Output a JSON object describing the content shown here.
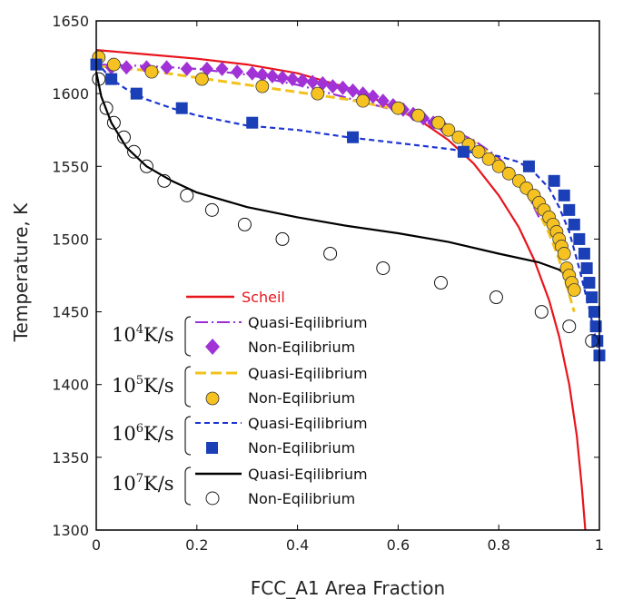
{
  "chart_data": {
    "type": "line",
    "xlabel": "FCC_A1 Area Fraction",
    "ylabel": "Temperature, K",
    "xlim": [
      0,
      1
    ],
    "ylim": [
      1300,
      1650
    ],
    "x_ticks": [
      0,
      0.2,
      0.4,
      0.6,
      0.8,
      1
    ],
    "x_tick_labels": [
      "0",
      "0.2",
      "0.4",
      "0.6",
      "0.8",
      "1"
    ],
    "y_ticks": [
      1300,
      1350,
      1400,
      1450,
      1500,
      1550,
      1600,
      1650
    ],
    "y_tick_labels": [
      "1300",
      "1350",
      "1400",
      "1450",
      "1500",
      "1550",
      "1600",
      "1650"
    ],
    "series": [
      {
        "name": "Scheil",
        "kind": "line",
        "color": "#e8141b",
        "dash": "solid",
        "x": [
          0,
          0.1,
          0.2,
          0.3,
          0.4,
          0.5,
          0.55,
          0.6,
          0.65,
          0.7,
          0.75,
          0.8,
          0.84,
          0.87,
          0.9,
          0.92,
          0.94,
          0.955,
          0.965,
          0.972
        ],
        "y": [
          1630,
          1627,
          1624,
          1620,
          1614,
          1604,
          1597,
          1589,
          1580,
          1568,
          1552,
          1530,
          1508,
          1486,
          1458,
          1433,
          1400,
          1365,
          1330,
          1300
        ]
      },
      {
        "name": "Quasi-Eqilibrium 10^4 K/s",
        "kind": "line",
        "color": "#9b2fd6",
        "dash": "dashdot",
        "x": [
          0,
          0.1,
          0.2,
          0.3,
          0.4,
          0.5,
          0.6,
          0.65,
          0.7,
          0.75,
          0.8,
          0.85,
          0.88
        ],
        "y": [
          1620,
          1619,
          1617,
          1613,
          1606,
          1597,
          1588,
          1583,
          1576,
          1568,
          1556,
          1536,
          1515
        ]
      },
      {
        "name": "Non-Eqilibrium 10^4 K/s",
        "kind": "marker",
        "marker": "diamond",
        "color": "#a132d6",
        "x": [
          0.03,
          0.06,
          0.1,
          0.14,
          0.18,
          0.22,
          0.25,
          0.28,
          0.31,
          0.33,
          0.35,
          0.37,
          0.39,
          0.41,
          0.43,
          0.45,
          0.47,
          0.49,
          0.51,
          0.53,
          0.55,
          0.57,
          0.59,
          0.61,
          0.63,
          0.65,
          0.67,
          0.69
        ],
        "y": [
          1618,
          1618,
          1618,
          1618,
          1617,
          1617,
          1617,
          1615,
          1614,
          1613,
          1612,
          1611,
          1610,
          1609,
          1608,
          1607,
          1605,
          1604,
          1602,
          1600,
          1598,
          1595,
          1592,
          1589,
          1586,
          1583,
          1580,
          1577
        ]
      },
      {
        "name": "Quasi-Eqilibrium 10^5 K/s",
        "kind": "line",
        "color": "#f2c21a",
        "dash": "dash",
        "x": [
          0,
          0.1,
          0.2,
          0.3,
          0.4,
          0.5,
          0.6,
          0.7,
          0.75,
          0.8,
          0.85,
          0.88,
          0.9,
          0.92,
          0.935,
          0.95
        ],
        "y": [
          1619,
          1616,
          1611,
          1606,
          1601,
          1596,
          1589,
          1576,
          1567,
          1554,
          1534,
          1518,
          1504,
          1486,
          1468,
          1450
        ]
      },
      {
        "name": "Non-Eqilibrium 10^5 K/s",
        "kind": "marker",
        "marker": "circle-filled",
        "color": "#f6c221",
        "x": [
          0.005,
          0.035,
          0.11,
          0.21,
          0.33,
          0.44,
          0.53,
          0.6,
          0.64,
          0.68,
          0.7,
          0.72,
          0.74,
          0.76,
          0.78,
          0.8,
          0.82,
          0.84,
          0.855,
          0.87,
          0.88,
          0.89,
          0.9,
          0.908,
          0.915,
          0.92,
          0.925,
          0.93,
          0.935,
          0.94,
          0.945,
          0.95
        ],
        "y": [
          1625,
          1620,
          1615,
          1610,
          1605,
          1600,
          1595,
          1590,
          1585,
          1580,
          1575,
          1570,
          1565,
          1560,
          1555,
          1550,
          1545,
          1540,
          1535,
          1530,
          1525,
          1520,
          1515,
          1510,
          1505,
          1500,
          1495,
          1490,
          1480,
          1475,
          1470,
          1465
        ]
      },
      {
        "name": "Quasi-Eqilibrium 10^6 K/s",
        "kind": "line",
        "color": "#1c35d2",
        "dash": "dash",
        "x": [
          0,
          0.03,
          0.06,
          0.1,
          0.15,
          0.2,
          0.3,
          0.4,
          0.5,
          0.6,
          0.7,
          0.8,
          0.84,
          0.87,
          0.9,
          0.92,
          0.94,
          0.96,
          0.98,
          1.0
        ],
        "y": [
          1622,
          1610,
          1603,
          1596,
          1590,
          1585,
          1578,
          1575,
          1570,
          1566,
          1562,
          1557,
          1553,
          1546,
          1535,
          1522,
          1505,
          1480,
          1452,
          1420
        ]
      },
      {
        "name": "Non-Eqilibrium 10^6 K/s",
        "kind": "marker",
        "marker": "square",
        "color": "#1a3fb6",
        "x": [
          0,
          0.03,
          0.08,
          0.17,
          0.31,
          0.51,
          0.73,
          0.86,
          0.91,
          0.93,
          0.94,
          0.95,
          0.96,
          0.97,
          0.975,
          0.98,
          0.985,
          0.99,
          0.993,
          0.996,
          1.0
        ],
        "y": [
          1620,
          1610,
          1600,
          1590,
          1580,
          1570,
          1560,
          1550,
          1540,
          1530,
          1520,
          1510,
          1500,
          1490,
          1480,
          1470,
          1460,
          1450,
          1440,
          1430,
          1420
        ]
      },
      {
        "name": "Quasi-Eqilibrium 10^7 K/s",
        "kind": "line",
        "color": "#000000",
        "dash": "solid",
        "x": [
          0,
          0.01,
          0.03,
          0.06,
          0.1,
          0.15,
          0.2,
          0.3,
          0.4,
          0.5,
          0.6,
          0.7,
          0.8,
          0.88,
          0.92,
          0.94
        ],
        "y": [
          1615,
          1598,
          1580,
          1563,
          1550,
          1540,
          1532,
          1522,
          1515,
          1509,
          1504,
          1498,
          1490,
          1484,
          1479,
          1474
        ]
      },
      {
        "name": "Non-Eqilibrium 10^7 K/s",
        "kind": "marker",
        "marker": "circle-open",
        "color": "#111111",
        "x": [
          0.005,
          0.02,
          0.035,
          0.055,
          0.075,
          0.1,
          0.135,
          0.18,
          0.23,
          0.295,
          0.37,
          0.465,
          0.57,
          0.685,
          0.795,
          0.885,
          0.94,
          0.985
        ],
        "y": [
          1610,
          1590,
          1580,
          1570,
          1560,
          1550,
          1540,
          1530,
          1520,
          1510,
          1500,
          1490,
          1480,
          1470,
          1460,
          1450,
          1440,
          1430
        ]
      }
    ]
  },
  "legend": {
    "scheil_label": "Scheil",
    "groups": [
      {
        "rate_base": "10",
        "rate_exp": "4",
        "rate_unit": "K/s",
        "line_label": "Quasi-Eqilibrium",
        "marker_label": "Non-Eqilibrium"
      },
      {
        "rate_base": "10",
        "rate_exp": "5",
        "rate_unit": "K/s",
        "line_label": "Quasi-Eqilibrium",
        "marker_label": "Non-Eqilibrium"
      },
      {
        "rate_base": "10",
        "rate_exp": "6",
        "rate_unit": "K/s",
        "line_label": "Quasi-Eqilibrium",
        "marker_label": "Non-Eqilibrium"
      },
      {
        "rate_base": "10",
        "rate_exp": "7",
        "rate_unit": "K/s",
        "line_label": "Quasi-Eqilibrium",
        "marker_label": "Non-Eqilibrium"
      }
    ]
  }
}
